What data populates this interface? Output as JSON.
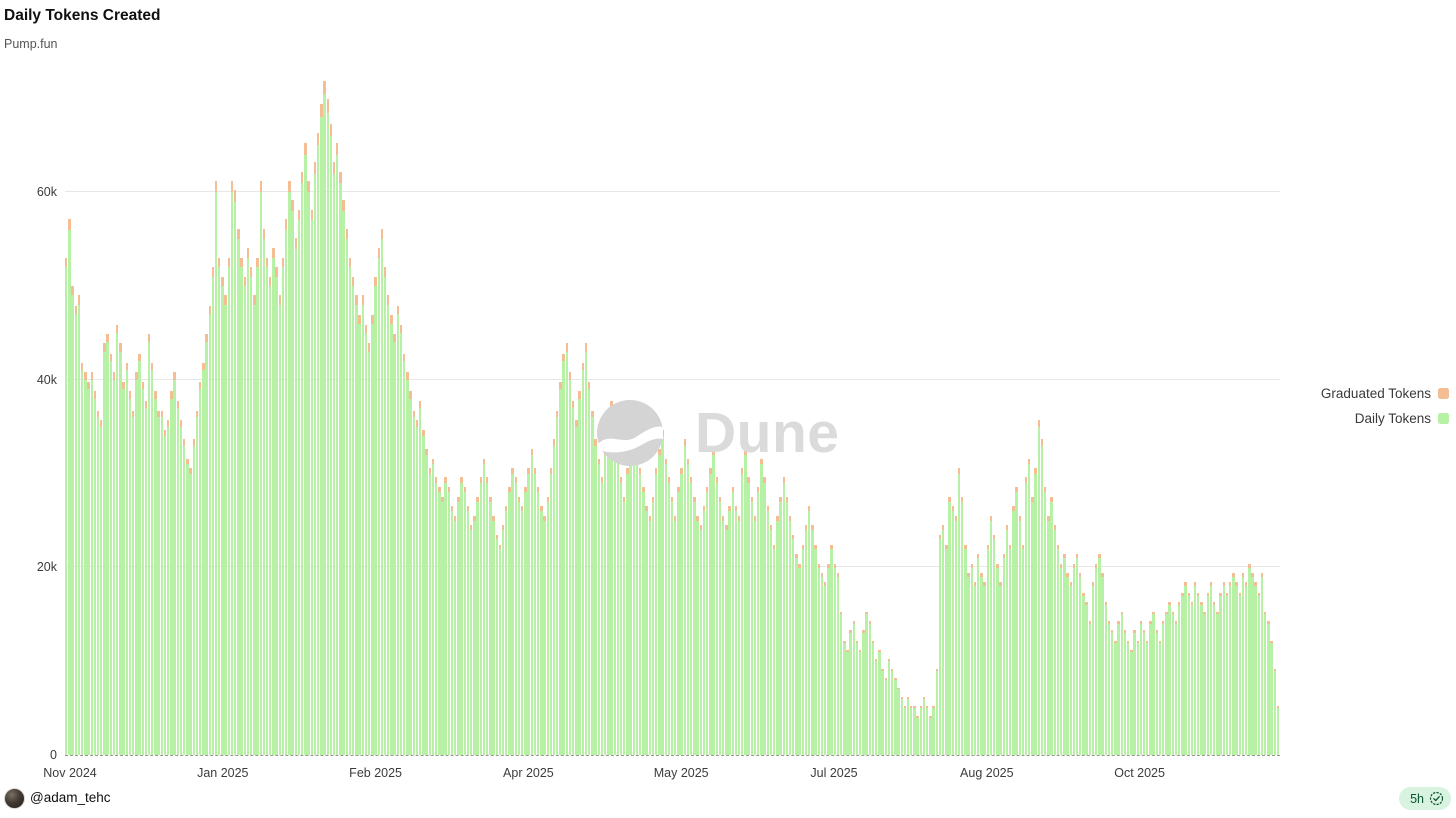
{
  "page": {
    "title": "Daily Tokens Created",
    "subtitle": "Pump.fun"
  },
  "watermark": {
    "text": "Dune",
    "icon": "dune-logo-icon"
  },
  "legend": {
    "items": [
      {
        "label": "Graduated Tokens",
        "color": "#f4bd94"
      },
      {
        "label": "Daily Tokens",
        "color": "#b7f1a5"
      }
    ]
  },
  "footer": {
    "author_handle": "@adam_tehc",
    "time_badge": "5h"
  },
  "chart_data": {
    "type": "bar",
    "stacked": true,
    "title": "Daily Tokens Created",
    "subtitle": "Pump.fun",
    "x_description": "Daily bars from Nov 2024 through mid-Nov 2025",
    "x_tick_labels": [
      "Nov 2024",
      "Jan 2025",
      "Feb 2025",
      "Apr 2025",
      "May 2025",
      "Jul 2025",
      "Aug 2025",
      "Oct 2025"
    ],
    "values_unit": "thousands of tokens per day (estimated from chart)",
    "grid": "horizontal",
    "legend_position": "right",
    "y_axis": {
      "max": 72.5,
      "ticks": [
        {
          "label": "0",
          "value": 0
        },
        {
          "label": "20k",
          "value": 20
        },
        {
          "label": "40k",
          "value": 40
        },
        {
          "label": "60k",
          "value": 60
        }
      ]
    },
    "series": [
      {
        "name": "Daily Tokens",
        "color": "#b7f1a5",
        "values": [
          52,
          56,
          49,
          47,
          48,
          41,
          40,
          39,
          40,
          38,
          36,
          35,
          43,
          44,
          42,
          40,
          45,
          43,
          39,
          41,
          38,
          36,
          40,
          42,
          39,
          37,
          44,
          41,
          38,
          36,
          36,
          34,
          35,
          38,
          40,
          37,
          35,
          33,
          31,
          30,
          33,
          36,
          39,
          41,
          44,
          47,
          51,
          60,
          52,
          50,
          48,
          52,
          60,
          59,
          55,
          52,
          50,
          53,
          51,
          48,
          52,
          60,
          55,
          52,
          50,
          53,
          51,
          48,
          52,
          56,
          60,
          58,
          54,
          57,
          61,
          64,
          60,
          57,
          62,
          65,
          68,
          70.5,
          68.5,
          66,
          62,
          64,
          61,
          58,
          55,
          52,
          50,
          48,
          46,
          48,
          45,
          43,
          46,
          50,
          53,
          55,
          51,
          48,
          46,
          44,
          47,
          45,
          42,
          40,
          38,
          36,
          35,
          37,
          34,
          32,
          30,
          31,
          29,
          28,
          27,
          29,
          28,
          26,
          25,
          27,
          29,
          28,
          26,
          24,
          25,
          27,
          29,
          31,
          29,
          27,
          25,
          23,
          22,
          24,
          26,
          28,
          30,
          29,
          27,
          26,
          28,
          30,
          32,
          30,
          28,
          26,
          25,
          27,
          30,
          33,
          36,
          39,
          42,
          43,
          40,
          37,
          35,
          38,
          41,
          43,
          39,
          36,
          33,
          31,
          29,
          32,
          35,
          37,
          34,
          31,
          29,
          27,
          30,
          33,
          35,
          32,
          30,
          28,
          26,
          25,
          27,
          30,
          32,
          34,
          31,
          29,
          27,
          25,
          28,
          30,
          33,
          31,
          29,
          27,
          25,
          24,
          26,
          28,
          30,
          32,
          29,
          27,
          25,
          24,
          26,
          28,
          26,
          25,
          30,
          32,
          29,
          27,
          25,
          28,
          31,
          29,
          26,
          24,
          22,
          25,
          27,
          29,
          27,
          25,
          23,
          21,
          20,
          22,
          24,
          26,
          24,
          22,
          20,
          19,
          18,
          20,
          22,
          20,
          19,
          15,
          12,
          11,
          13,
          14,
          12,
          11,
          13,
          15,
          14,
          12,
          10,
          11,
          9,
          8,
          10,
          9,
          8,
          7,
          6,
          5,
          6,
          5,
          5,
          4,
          5,
          6,
          5,
          4,
          5,
          9,
          23,
          24,
          22,
          27,
          26,
          25,
          30,
          27,
          22,
          19,
          20,
          18,
          21,
          19,
          18,
          22,
          25,
          23,
          20,
          18,
          21,
          24,
          22,
          26,
          28,
          25,
          22,
          29,
          31,
          27,
          30,
          35,
          33,
          28,
          25,
          27,
          24,
          22,
          20,
          21,
          19,
          18,
          20,
          21,
          19,
          17,
          16,
          14,
          18,
          20,
          21,
          19,
          16,
          14,
          13,
          12,
          14,
          15,
          13,
          12,
          11,
          13,
          12,
          14,
          13,
          12,
          14,
          15,
          13,
          12,
          14,
          15,
          16,
          15,
          14,
          16,
          17,
          18,
          17,
          16,
          18,
          17,
          16,
          15,
          17,
          18,
          16,
          15,
          17,
          18,
          17,
          18,
          19,
          18,
          17,
          19,
          18,
          20,
          19,
          18,
          17,
          19,
          15,
          14,
          12,
          9,
          5
        ]
      },
      {
        "name": "Graduated Tokens",
        "color": "#f4bd94",
        "values": [
          1.0,
          1.1,
          1.0,
          0.9,
          1.0,
          0.8,
          0.8,
          0.8,
          0.8,
          0.8,
          0.7,
          0.7,
          0.9,
          0.9,
          0.8,
          0.8,
          0.9,
          0.9,
          0.8,
          0.8,
          0.8,
          0.7,
          0.8,
          0.8,
          0.8,
          0.7,
          0.9,
          0.8,
          0.8,
          0.7,
          0.7,
          0.7,
          0.7,
          0.8,
          0.8,
          0.7,
          0.7,
          0.7,
          0.6,
          0.6,
          0.7,
          0.7,
          0.8,
          0.8,
          0.9,
          0.9,
          1.0,
          1.2,
          1.0,
          1.0,
          1.0,
          1.0,
          1.2,
          1.2,
          1.1,
          1.0,
          1.0,
          1.1,
          1.0,
          1.0,
          1.0,
          1.2,
          1.1,
          1.0,
          1.0,
          1.1,
          1.0,
          1.0,
          1.0,
          1.1,
          1.2,
          1.2,
          1.1,
          1.1,
          1.2,
          1.3,
          1.2,
          1.1,
          1.2,
          1.3,
          1.4,
          1.4,
          1.4,
          1.3,
          1.2,
          1.3,
          1.2,
          1.2,
          1.1,
          1.0,
          1.0,
          1.0,
          0.9,
          1.0,
          0.9,
          0.9,
          0.9,
          1.0,
          1.1,
          1.1,
          1.0,
          1.0,
          0.9,
          0.9,
          0.9,
          0.9,
          0.8,
          0.8,
          0.8,
          0.7,
          0.7,
          0.7,
          0.7,
          0.6,
          0.6,
          0.6,
          0.6,
          0.6,
          0.5,
          0.6,
          0.6,
          0.5,
          0.5,
          0.5,
          0.6,
          0.6,
          0.5,
          0.5,
          0.5,
          0.5,
          0.6,
          0.6,
          0.6,
          0.5,
          0.5,
          0.5,
          0.4,
          0.5,
          0.5,
          0.6,
          0.6,
          0.6,
          0.5,
          0.5,
          0.6,
          0.6,
          0.6,
          0.6,
          0.6,
          0.5,
          0.5,
          0.5,
          0.6,
          0.7,
          0.7,
          0.8,
          0.8,
          0.9,
          0.8,
          0.7,
          0.7,
          0.8,
          0.8,
          0.9,
          0.8,
          0.7,
          0.7,
          0.6,
          0.6,
          0.6,
          0.7,
          0.7,
          0.7,
          0.6,
          0.6,
          0.5,
          0.6,
          0.7,
          0.7,
          0.6,
          0.6,
          0.6,
          0.5,
          0.5,
          0.5,
          0.6,
          0.6,
          0.7,
          0.6,
          0.6,
          0.5,
          0.5,
          0.6,
          0.6,
          0.7,
          0.6,
          0.6,
          0.5,
          0.5,
          0.5,
          0.5,
          0.6,
          0.6,
          0.6,
          0.6,
          0.5,
          0.5,
          0.5,
          0.5,
          0.6,
          0.5,
          0.5,
          0.6,
          0.6,
          0.6,
          0.5,
          0.5,
          0.6,
          0.6,
          0.6,
          0.5,
          0.5,
          0.4,
          0.5,
          0.5,
          0.6,
          0.5,
          0.5,
          0.5,
          0.4,
          0.4,
          0.4,
          0.5,
          0.5,
          0.5,
          0.4,
          0.4,
          0.4,
          0.4,
          0.4,
          0.4,
          0.4,
          0.4,
          0.3,
          0.2,
          0.2,
          0.3,
          0.3,
          0.2,
          0.2,
          0.3,
          0.3,
          0.3,
          0.2,
          0.2,
          0.2,
          0.2,
          0.2,
          0.2,
          0.2,
          0.2,
          0.2,
          0.2,
          0.2,
          0.2,
          0.2,
          0.2,
          0.2,
          0.2,
          0.2,
          0.2,
          0.2,
          0.2,
          0.2,
          0.5,
          0.5,
          0.4,
          0.5,
          0.5,
          0.5,
          0.6,
          0.5,
          0.4,
          0.4,
          0.4,
          0.4,
          0.4,
          0.4,
          0.4,
          0.4,
          0.5,
          0.5,
          0.4,
          0.4,
          0.4,
          0.5,
          0.4,
          0.5,
          0.6,
          0.5,
          0.4,
          0.6,
          0.6,
          0.5,
          0.6,
          0.7,
          0.7,
          0.6,
          0.5,
          0.5,
          0.5,
          0.4,
          0.4,
          0.4,
          0.4,
          0.4,
          0.4,
          0.4,
          0.4,
          0.3,
          0.3,
          0.3,
          0.4,
          0.4,
          0.4,
          0.4,
          0.3,
          0.3,
          0.3,
          0.2,
          0.3,
          0.3,
          0.3,
          0.2,
          0.2,
          0.3,
          0.2,
          0.3,
          0.3,
          0.2,
          0.3,
          0.3,
          0.3,
          0.2,
          0.3,
          0.3,
          0.3,
          0.3,
          0.3,
          0.3,
          0.3,
          0.4,
          0.3,
          0.3,
          0.4,
          0.3,
          0.3,
          0.3,
          0.3,
          0.4,
          0.3,
          0.3,
          0.3,
          0.4,
          0.3,
          0.4,
          0.4,
          0.4,
          0.3,
          0.4,
          0.4,
          0.4,
          0.4,
          0.4,
          0.3,
          0.4,
          0.3,
          0.3,
          0.2,
          0.2,
          0.2
        ]
      }
    ]
  }
}
